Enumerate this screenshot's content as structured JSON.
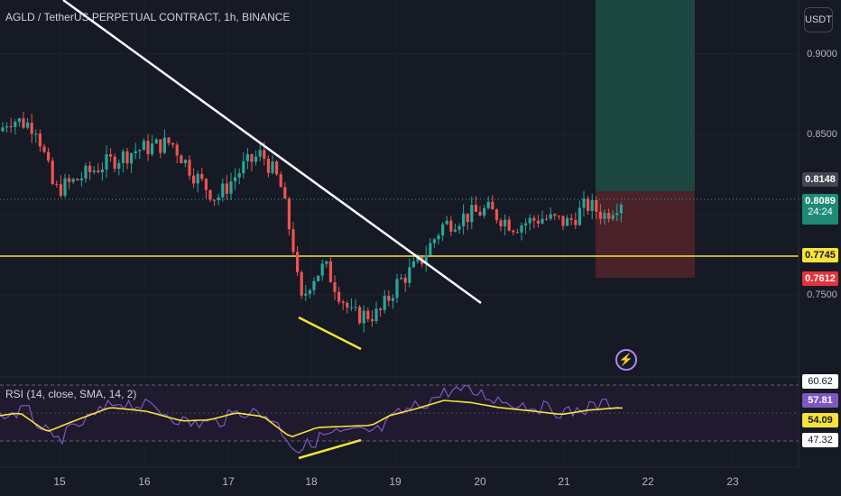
{
  "header": {
    "title": "AGLD / TetherUS PERPETUAL CONTRACT, 1h, BINANCE"
  },
  "currency_button": "USDT",
  "price_axis": [
    {
      "value": 0.9,
      "label": "0.9000"
    },
    {
      "value": 0.85,
      "label": "0.8500"
    },
    {
      "value": 0.75,
      "label": "0.7500"
    }
  ],
  "tags": {
    "position_top": "0.8148",
    "last_price": "0.8089",
    "countdown": "24:24",
    "support_line": "0.7745",
    "position_bottom": "0.7612"
  },
  "rsi": {
    "label": "RSI (14, close, SMA, 14, 2)",
    "levels": [
      "60.62",
      "57.81",
      "54.09",
      "47.32"
    ]
  },
  "x_axis": [
    "15",
    "16",
    "17",
    "18",
    "19",
    "20",
    "21",
    "22",
    "23"
  ],
  "icons": {
    "alert": "lightning-icon"
  },
  "colors": {
    "background": "#161a25",
    "up": "#26a69a",
    "down": "#ef5350",
    "support": "#f5e33a",
    "trendline": "#ffffff",
    "rsi_line": "#7e57c2",
    "rsi_ma": "#f5e33a",
    "profit_zone": "#1c4740",
    "loss_zone": "#4a2229"
  }
}
